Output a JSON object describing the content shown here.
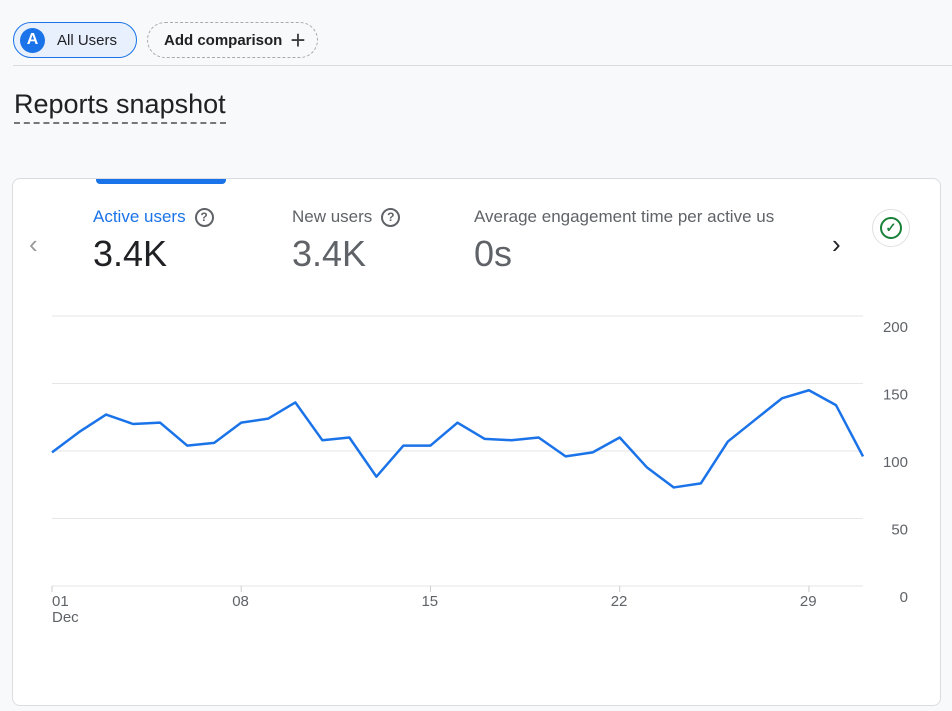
{
  "segment": {
    "avatar": "A",
    "label": "All Users"
  },
  "add_comparison": {
    "label": "Add comparison",
    "icon": "+"
  },
  "page_title": "Reports snapshot",
  "metrics": [
    {
      "label": "Active users",
      "value": "3.4K",
      "selected": true
    },
    {
      "label": "New users",
      "value": "3.4K"
    },
    {
      "label": "Average engagement time per active us",
      "value": "0s"
    }
  ],
  "help_icon": "?",
  "nav": {
    "prev": "‹",
    "next": "›"
  },
  "status_icon": "✓",
  "colors": {
    "accent": "#1a73e8",
    "success": "#188038"
  },
  "chart_data": {
    "type": "line",
    "series": [
      {
        "name": "Active users",
        "values": [
          99,
          114,
          127,
          120,
          121,
          104,
          106,
          121,
          124,
          136,
          108,
          110,
          81,
          104,
          104,
          121,
          109,
          108,
          110,
          96,
          99,
          110,
          88,
          73,
          76,
          107,
          123,
          139,
          145,
          134,
          96
        ]
      }
    ],
    "x": [
      1,
      2,
      3,
      4,
      5,
      6,
      7,
      8,
      9,
      10,
      11,
      12,
      13,
      14,
      15,
      16,
      17,
      18,
      19,
      20,
      21,
      22,
      23,
      24,
      25,
      26,
      27,
      28,
      29,
      30,
      31
    ],
    "x_ticks": [
      {
        "day": 1,
        "label": "01",
        "sub": "Dec"
      },
      {
        "day": 8,
        "label": "08"
      },
      {
        "day": 15,
        "label": "15"
      },
      {
        "day": 22,
        "label": "22"
      },
      {
        "day": 29,
        "label": "29"
      }
    ],
    "y_ticks": [
      0,
      50,
      100,
      150,
      200
    ],
    "ylim": [
      0,
      200
    ],
    "grid": true
  }
}
